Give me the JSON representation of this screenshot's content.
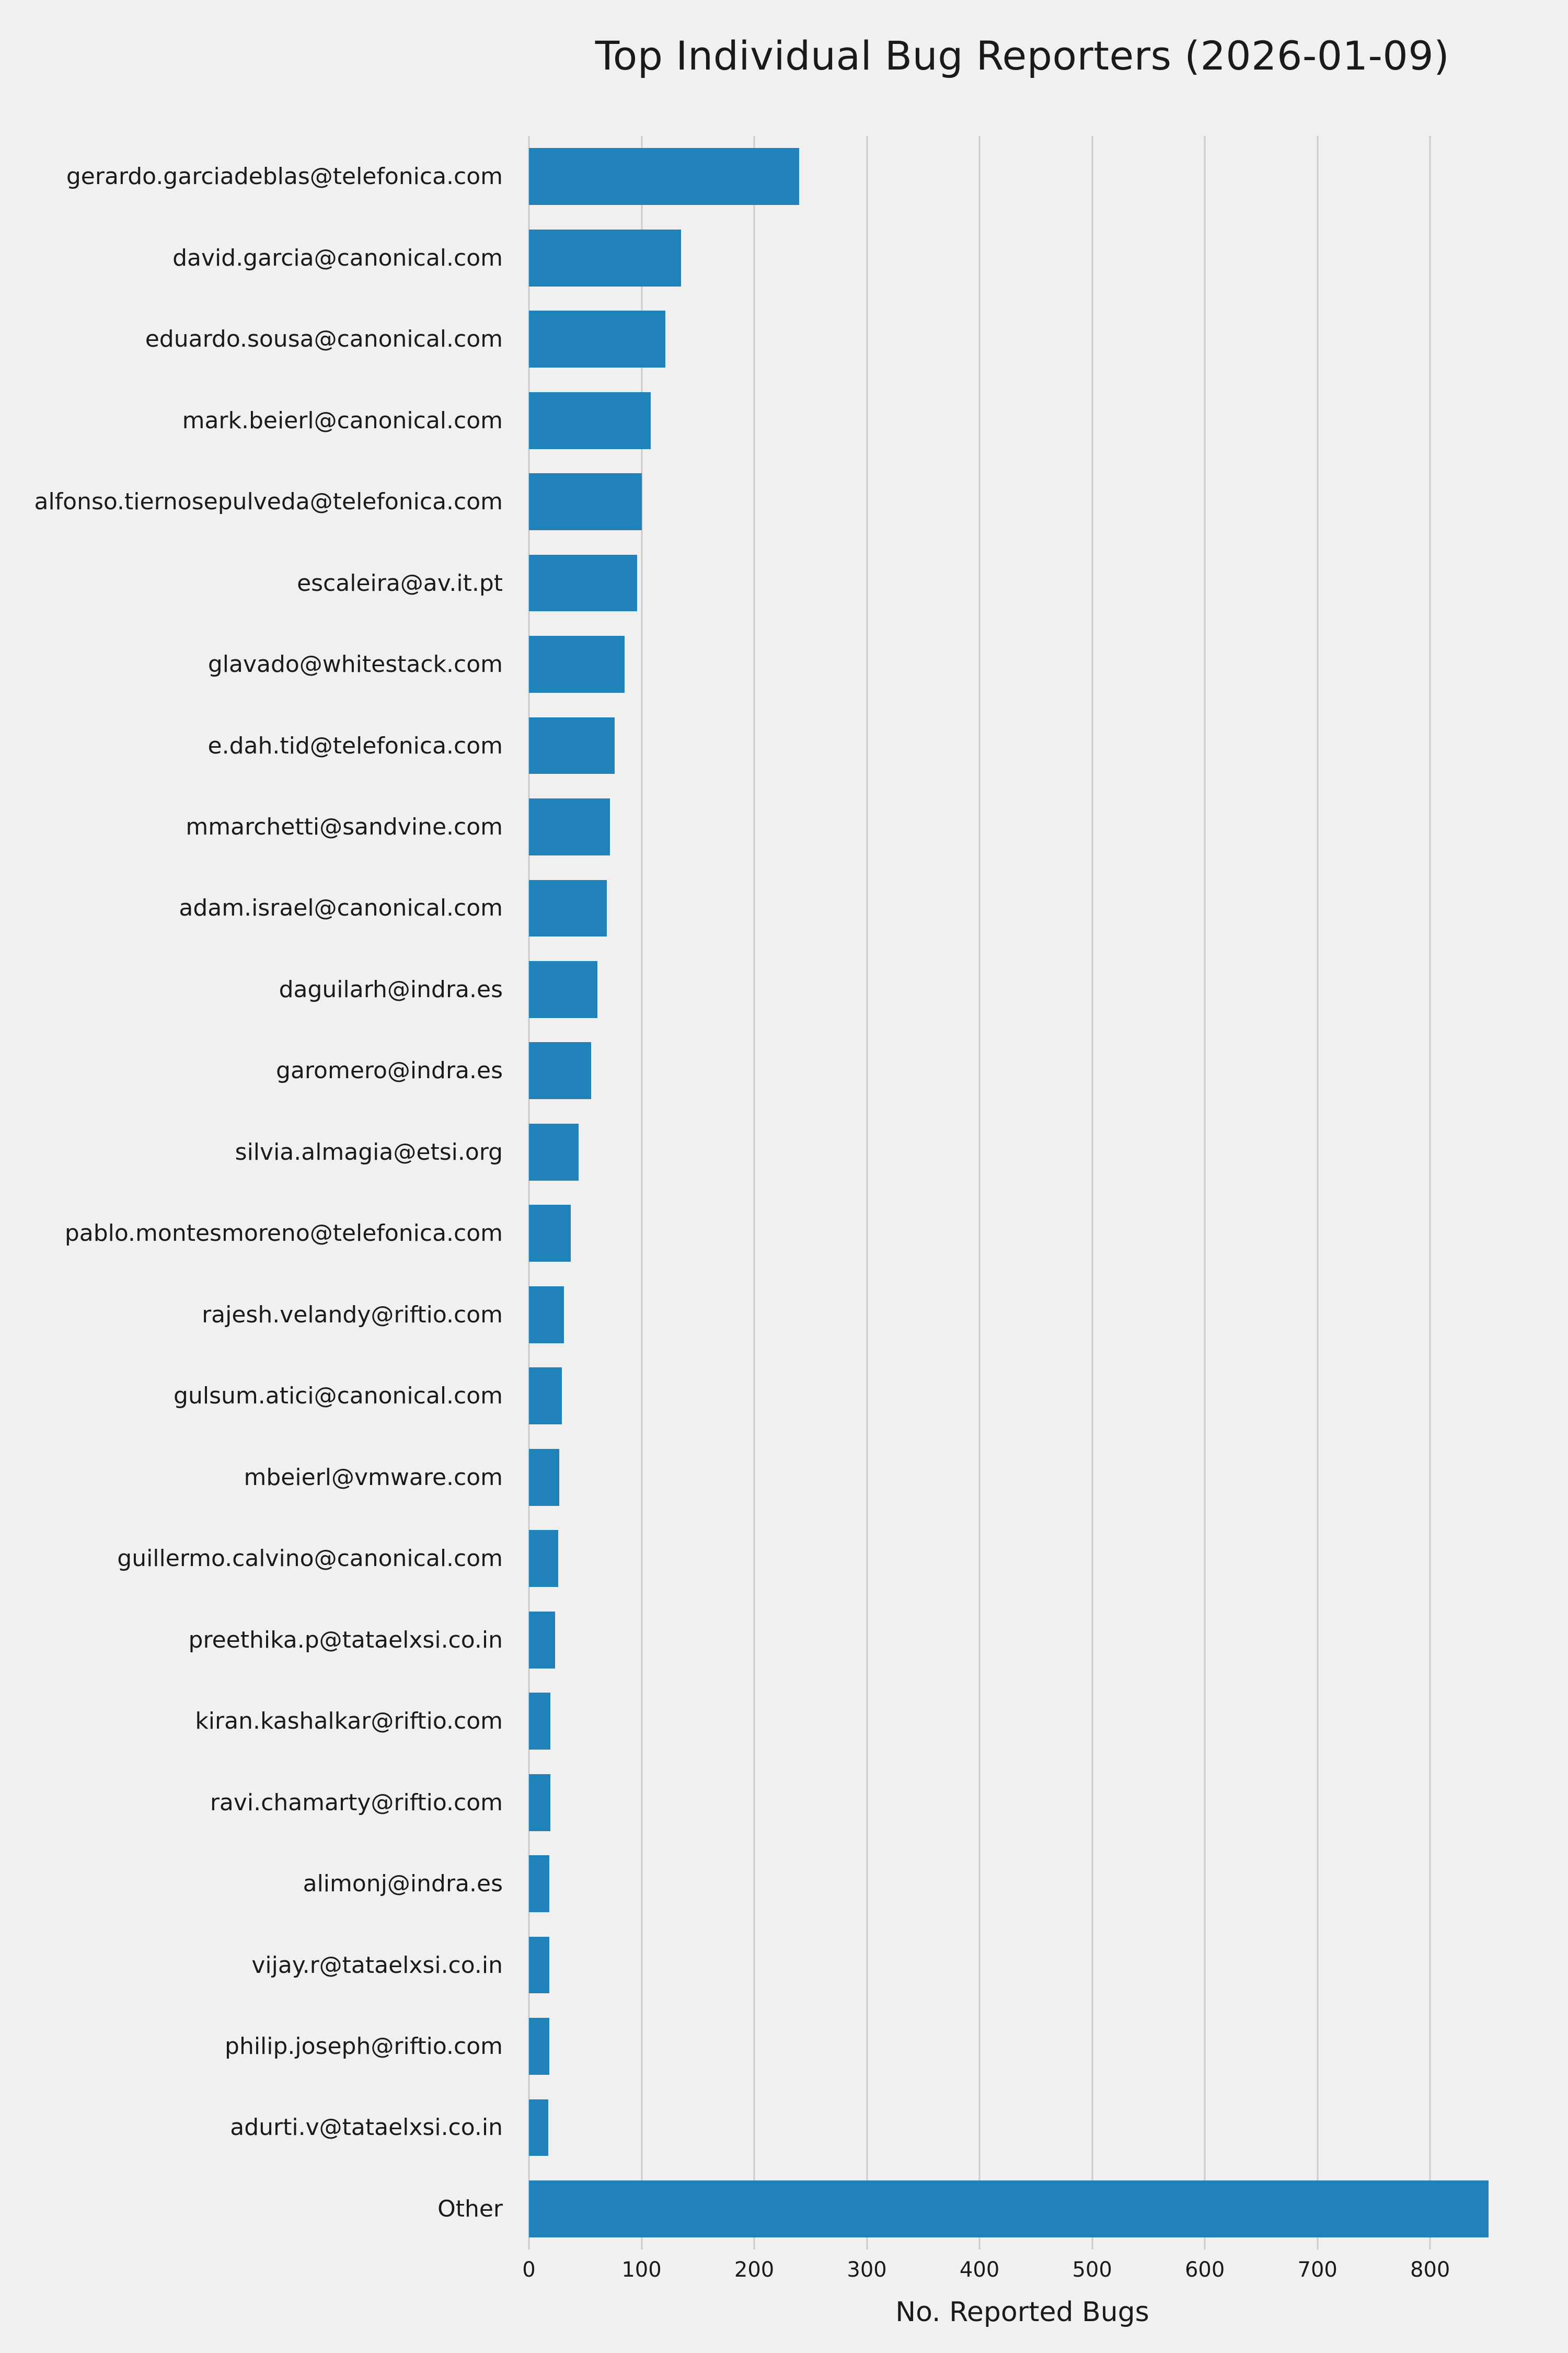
{
  "chart_data": {
    "type": "bar",
    "orientation": "horizontal",
    "title": "Top Individual Bug Reporters (2026-01-09)",
    "xlabel": "No. Reported Bugs",
    "ylabel": "",
    "xlim": [
      0,
      876
    ],
    "xticks": [
      0,
      100,
      200,
      300,
      400,
      500,
      600,
      700,
      800
    ],
    "grid": true,
    "legend": "none",
    "background_color": "#f0f0f0",
    "grid_color": "#cbcbcb",
    "bar_color": "#2182ba",
    "text_color": "#1a1a1a",
    "categories": [
      "gerardo.garciadeblas@telefonica.com",
      "david.garcia@canonical.com",
      "eduardo.sousa@canonical.com",
      "mark.beierl@canonical.com",
      "alfonso.tiernosepulveda@telefonica.com",
      "escaleira@av.it.pt",
      "glavado@whitestack.com",
      "e.dah.tid@telefonica.com",
      "mmarchetti@sandvine.com",
      "adam.israel@canonical.com",
      "daguilarh@indra.es",
      "garomero@indra.es",
      "silvia.almagia@etsi.org",
      "pablo.montesmoreno@telefonica.com",
      "rajesh.velandy@riftio.com",
      "gulsum.atici@canonical.com",
      "mbeierl@vmware.com",
      "guillermo.calvino@canonical.com",
      "preethika.p@tataelxsi.co.in",
      "kiran.kashalkar@riftio.com",
      "ravi.chamarty@riftio.com",
      "alimonj@indra.es",
      "vijay.r@tataelxsi.co.in",
      "philip.joseph@riftio.com",
      "adurti.v@tataelxsi.co.in",
      "Other"
    ],
    "values": [
      240,
      135,
      121,
      108,
      100,
      96,
      85,
      76,
      72,
      69,
      61,
      55,
      44,
      37,
      31,
      29,
      27,
      26,
      23,
      19,
      19,
      18,
      18,
      18,
      17,
      852
    ]
  }
}
